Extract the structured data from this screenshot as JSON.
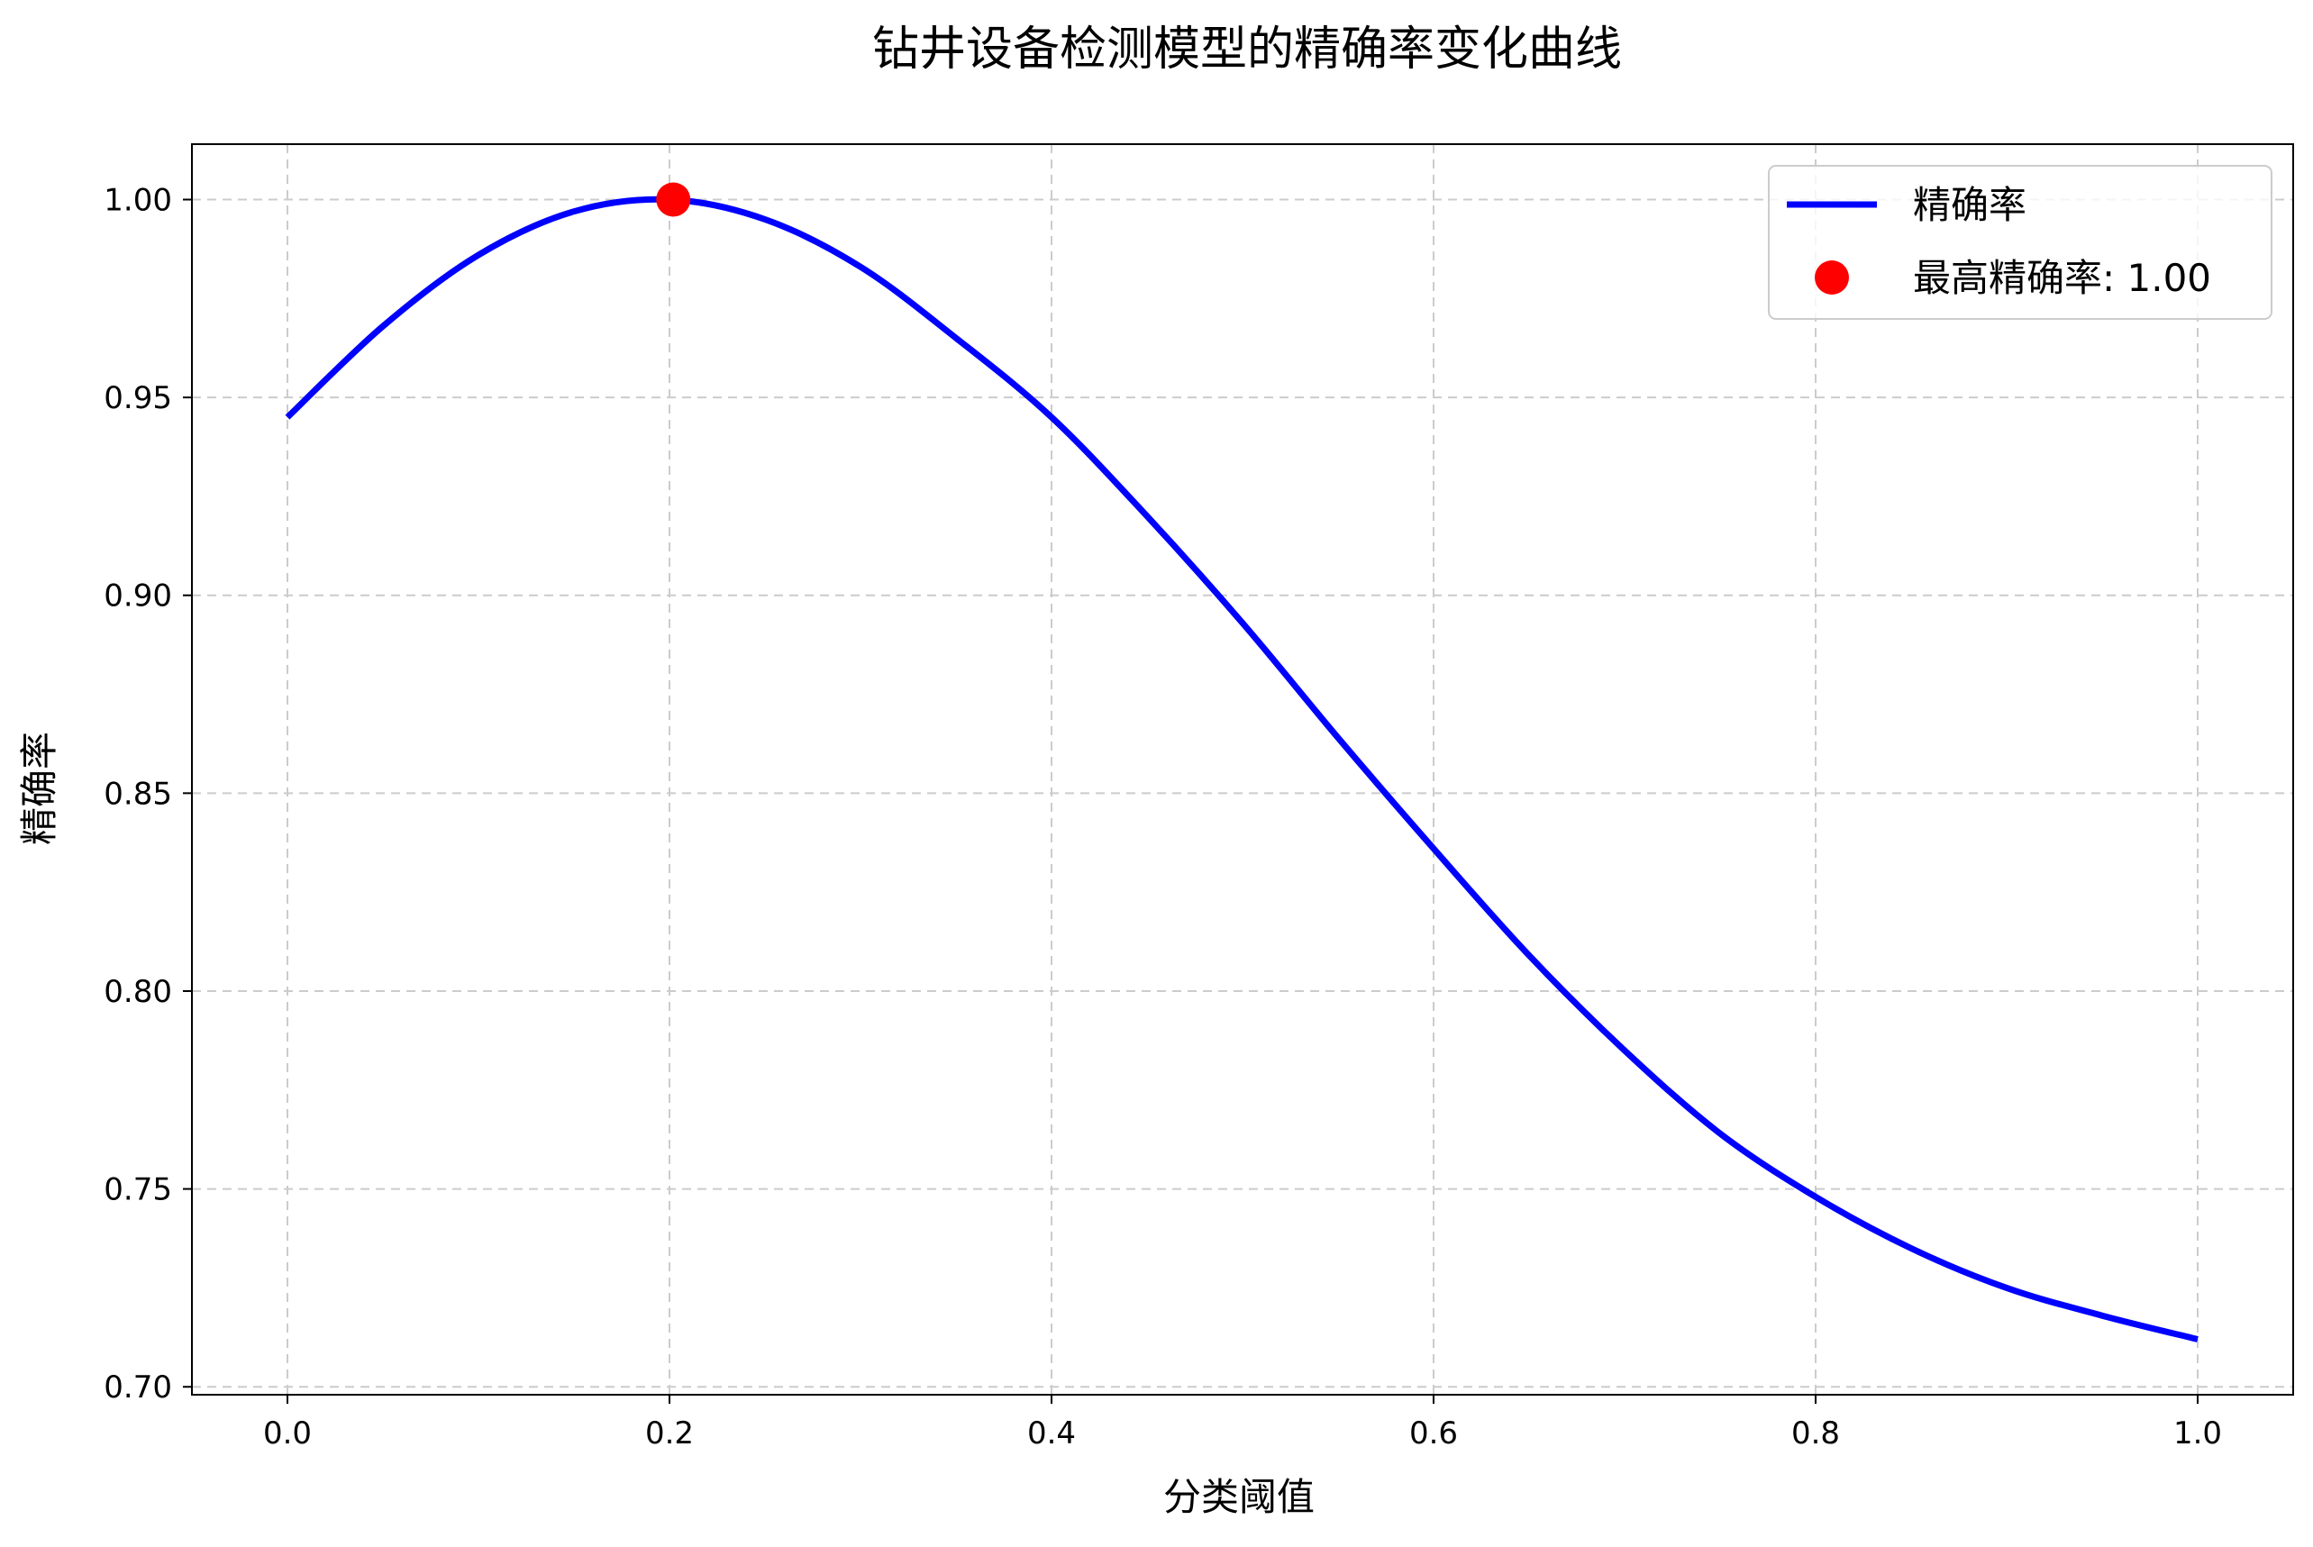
{
  "chart_data": {
    "type": "line",
    "title": "钻井设备检测模型的精确率变化曲线",
    "xlabel": "分类阈值",
    "ylabel": "精确率",
    "xlim": [
      -0.05,
      1.05
    ],
    "ylim": [
      0.698,
      1.014
    ],
    "xticks": [
      0.0,
      0.2,
      0.4,
      0.6,
      0.8,
      1.0
    ],
    "xtick_labels": [
      "0.0",
      "0.2",
      "0.4",
      "0.6",
      "0.8",
      "1.0"
    ],
    "yticks": [
      0.7,
      0.75,
      0.8,
      0.85,
      0.9,
      0.95,
      1.0
    ],
    "ytick_labels": [
      "0.70",
      "0.75",
      "0.80",
      "0.85",
      "0.90",
      "0.95",
      "1.00"
    ],
    "grid": true,
    "legend_position": "upper right",
    "series": [
      {
        "name": "精确率",
        "color": "#0000ff",
        "x": [
          0.0,
          0.05,
          0.1,
          0.15,
          0.2,
          0.25,
          0.3,
          0.35,
          0.4,
          0.45,
          0.5,
          0.55,
          0.6,
          0.65,
          0.7,
          0.75,
          0.8,
          0.85,
          0.9,
          0.95,
          1.0
        ],
        "y": [
          0.945,
          0.968,
          0.986,
          0.997,
          1.0,
          0.995,
          0.983,
          0.965,
          0.945,
          0.92,
          0.893,
          0.864,
          0.836,
          0.809,
          0.785,
          0.764,
          0.748,
          0.735,
          0.725,
          0.718,
          0.712
        ]
      }
    ],
    "highlight": {
      "name": "最高精确率: 1.00",
      "color": "#ff0000",
      "x": 0.202,
      "y": 1.0
    }
  }
}
